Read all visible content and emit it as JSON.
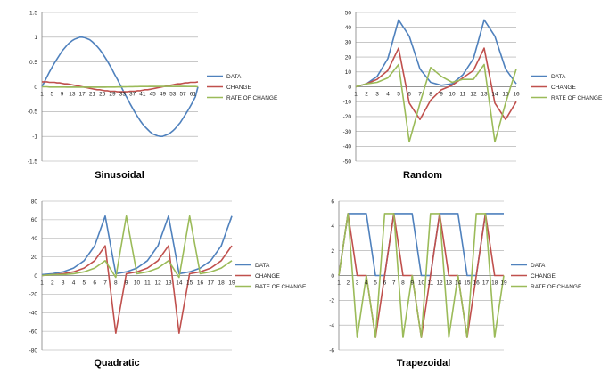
{
  "colors": {
    "data": "#4f81bd",
    "change": "#c0504d",
    "rate": "#9bbb59",
    "grid": "#a6a6a6",
    "axis": "#808080"
  },
  "chart_data": [
    {
      "type": "line",
      "title": "Sinusoidal",
      "ylim": [
        -1.5,
        1.5
      ],
      "ytick_labels": [
        "1.5",
        "1",
        "0.5",
        "0",
        "-0.5",
        "-1",
        "-1.5"
      ],
      "ytick_values": [
        1.5,
        1,
        0.5,
        0,
        -0.5,
        -1,
        -1.5
      ],
      "x": [
        1,
        2,
        3,
        4,
        5,
        6,
        7,
        8,
        9,
        10,
        11,
        12,
        13,
        14,
        15,
        16,
        17,
        18,
        19,
        20,
        21,
        22,
        23,
        24,
        25,
        26,
        27,
        28,
        29,
        30,
        31,
        32,
        33,
        34,
        35,
        36,
        37,
        38,
        39,
        40,
        41,
        42,
        43,
        44,
        45,
        46,
        47,
        48,
        49,
        50,
        51,
        52,
        53,
        54,
        55,
        56,
        57,
        58,
        59,
        60,
        61,
        62,
        63
      ],
      "xtick_labels": [
        "1",
        "5",
        "9",
        "13",
        "17",
        "21",
        "25",
        "29",
        "33",
        "37",
        "41",
        "45",
        "49",
        "53",
        "57",
        "61"
      ],
      "xtick_positions": [
        1,
        5,
        9,
        13,
        17,
        21,
        25,
        29,
        33,
        37,
        41,
        45,
        49,
        53,
        57,
        61
      ],
      "legend": "right",
      "series": [
        {
          "name": "DATA",
          "values": [
            0,
            0.1,
            0.2,
            0.3,
            0.39,
            0.48,
            0.56,
            0.64,
            0.72,
            0.78,
            0.84,
            0.89,
            0.93,
            0.96,
            0.98,
            1,
            1,
            0.99,
            0.97,
            0.95,
            0.91,
            0.86,
            0.81,
            0.75,
            0.68,
            0.6,
            0.52,
            0.43,
            0.34,
            0.24,
            0.15,
            0.05,
            -0.05,
            -0.15,
            -0.24,
            -0.34,
            -0.43,
            -0.52,
            -0.6,
            -0.68,
            -0.75,
            -0.81,
            -0.86,
            -0.91,
            -0.95,
            -0.97,
            -0.99,
            -1,
            -1,
            -0.98,
            -0.96,
            -0.93,
            -0.89,
            -0.84,
            -0.78,
            -0.72,
            -0.64,
            -0.56,
            -0.48,
            -0.39,
            -0.3,
            -0.2,
            0
          ]
        },
        {
          "name": "CHANGE",
          "values": [
            0.1,
            0.1,
            0.1,
            0.09,
            0.09,
            0.09,
            0.08,
            0.08,
            0.07,
            0.06,
            0.06,
            0.05,
            0.04,
            0.03,
            0.02,
            0.01,
            0,
            -0.01,
            -0.02,
            -0.03,
            -0.04,
            -0.05,
            -0.06,
            -0.06,
            -0.07,
            -0.08,
            -0.08,
            -0.09,
            -0.09,
            -0.09,
            -0.1,
            -0.1,
            -0.1,
            -0.1,
            -0.1,
            -0.09,
            -0.09,
            -0.09,
            -0.08,
            -0.08,
            -0.07,
            -0.06,
            -0.06,
            -0.05,
            -0.04,
            -0.03,
            -0.02,
            -0.01,
            0,
            0.01,
            0.02,
            0.03,
            0.04,
            0.05,
            0.06,
            0.06,
            0.07,
            0.08,
            0.08,
            0.09,
            0.09,
            0.09,
            0.1
          ]
        },
        {
          "name": "RATE OF CHANGE",
          "values": [
            0,
            0,
            0,
            -0.005,
            -0.005,
            -0.005,
            -0.005,
            -0.006,
            -0.006,
            -0.006,
            -0.007,
            -0.007,
            -0.007,
            -0.008,
            -0.008,
            -0.008,
            -0.008,
            -0.008,
            -0.008,
            -0.008,
            -0.008,
            -0.008,
            -0.008,
            -0.007,
            -0.007,
            -0.007,
            -0.006,
            -0.006,
            -0.005,
            -0.005,
            -0.004,
            -0.003,
            -0.002,
            -0.001,
            0,
            0.001,
            0.002,
            0.003,
            0.004,
            0.005,
            0.005,
            0.006,
            0.006,
            0.007,
            0.007,
            0.007,
            0.008,
            0.008,
            0.008,
            0.008,
            0.008,
            0.008,
            0.008,
            0.008,
            0.008,
            0.007,
            0.007,
            0.007,
            0.006,
            0.006,
            0.005,
            0.005,
            0
          ]
        }
      ]
    },
    {
      "type": "line",
      "title": "Random",
      "ylim": [
        -50,
        50
      ],
      "ytick_labels": [
        "50",
        "40",
        "30",
        "20",
        "10",
        "0",
        "-10",
        "-20",
        "-30",
        "-40",
        "-50"
      ],
      "ytick_values": [
        50,
        40,
        30,
        20,
        10,
        0,
        -10,
        -20,
        -30,
        -40,
        -50
      ],
      "x": [
        1,
        2,
        3,
        4,
        5,
        6,
        7,
        8,
        9,
        10,
        11,
        12,
        13,
        14,
        15,
        16
      ],
      "xtick_labels": [
        "1",
        "2",
        "3",
        "4",
        "5",
        "6",
        "7",
        "8",
        "9",
        "10",
        "11",
        "12",
        "13",
        "14",
        "15",
        "16"
      ],
      "xtick_positions": [
        1,
        2,
        3,
        4,
        5,
        6,
        7,
        8,
        9,
        10,
        11,
        12,
        13,
        14,
        15,
        16
      ],
      "legend": "right",
      "series": [
        {
          "name": "DATA",
          "values": [
            0,
            2,
            7,
            19,
            45,
            34,
            12,
            3,
            1,
            2,
            8,
            19,
            45,
            34,
            12,
            2
          ]
        },
        {
          "name": "CHANGE",
          "values": [
            0,
            2,
            5,
            11,
            26,
            -11,
            -22,
            -9,
            -2,
            1,
            6,
            11,
            26,
            -11,
            -22,
            -10
          ]
        },
        {
          "name": "RATE OF CHANGE",
          "values": [
            0,
            2,
            3,
            6,
            15,
            -37,
            -11,
            13,
            7,
            3,
            5,
            5,
            15,
            -37,
            -11,
            12
          ]
        }
      ]
    },
    {
      "type": "line",
      "title": "Quadratic",
      "ylim": [
        -80,
        80
      ],
      "ytick_labels": [
        "80",
        "60",
        "40",
        "20",
        "0",
        "-20",
        "-40",
        "-60",
        "-80"
      ],
      "ytick_values": [
        80,
        60,
        40,
        20,
        0,
        -20,
        -40,
        -60,
        -80
      ],
      "x": [
        1,
        2,
        3,
        4,
        5,
        6,
        7,
        8,
        9,
        10,
        11,
        12,
        13,
        14,
        15,
        16,
        17,
        18,
        19
      ],
      "xtick_labels": [
        "1",
        "2",
        "3",
        "4",
        "5",
        "6",
        "7",
        "8",
        "9",
        "10",
        "11",
        "12",
        "13",
        "14",
        "15",
        "16",
        "17",
        "18",
        "19"
      ],
      "xtick_positions": [
        1,
        2,
        3,
        4,
        5,
        6,
        7,
        8,
        9,
        10,
        11,
        12,
        13,
        14,
        15,
        16,
        17,
        18,
        19
      ],
      "legend": "right",
      "series": [
        {
          "name": "DATA",
          "values": [
            1,
            2,
            4,
            8,
            16,
            32,
            64,
            2,
            4,
            8,
            16,
            32,
            64,
            2,
            4,
            8,
            16,
            32,
            64
          ]
        },
        {
          "name": "CHANGE",
          "values": [
            0,
            1,
            2,
            4,
            8,
            16,
            32,
            -62,
            2,
            4,
            8,
            16,
            32,
            -62,
            2,
            4,
            8,
            16,
            32
          ]
        },
        {
          "name": "RATE OF CHANGE",
          "values": [
            0,
            1,
            1,
            2,
            4,
            8,
            16,
            -2,
            64,
            2,
            4,
            8,
            16,
            -2,
            64,
            2,
            4,
            8,
            16
          ]
        }
      ]
    },
    {
      "type": "line",
      "title": "Trapezoidal",
      "ylim": [
        -6,
        6
      ],
      "ytick_labels": [
        "6",
        "4",
        "2",
        "0",
        "-2",
        "-4",
        "-6"
      ],
      "ytick_values": [
        6,
        4,
        2,
        0,
        -2,
        -4,
        -6
      ],
      "x": [
        1,
        2,
        3,
        4,
        5,
        6,
        7,
        8,
        9,
        10,
        11,
        12,
        13,
        14,
        15,
        16,
        17,
        18,
        19
      ],
      "xtick_labels": [
        "1",
        "2",
        "3",
        "4",
        "5",
        "6",
        "7",
        "8",
        "9",
        "10",
        "11",
        "12",
        "13",
        "14",
        "15",
        "16",
        "17",
        "18",
        "19"
      ],
      "xtick_positions": [
        1,
        2,
        3,
        4,
        5,
        6,
        7,
        8,
        9,
        10,
        11,
        12,
        13,
        14,
        15,
        16,
        17,
        18,
        19
      ],
      "legend": "right",
      "series": [
        {
          "name": "DATA",
          "values": [
            0,
            5,
            5,
            5,
            0,
            0,
            5,
            5,
            5,
            0,
            0,
            5,
            5,
            5,
            0,
            0,
            5,
            5,
            5
          ]
        },
        {
          "name": "CHANGE",
          "values": [
            0,
            5,
            0,
            0,
            -5,
            0,
            5,
            0,
            0,
            -5,
            0,
            5,
            0,
            0,
            -5,
            0,
            5,
            0,
            0
          ]
        },
        {
          "name": "RATE OF CHANGE",
          "values": [
            0,
            5,
            -5,
            0,
            -5,
            5,
            5,
            -5,
            0,
            -5,
            5,
            5,
            -5,
            0,
            -5,
            5,
            5,
            -5,
            0
          ]
        }
      ]
    }
  ]
}
